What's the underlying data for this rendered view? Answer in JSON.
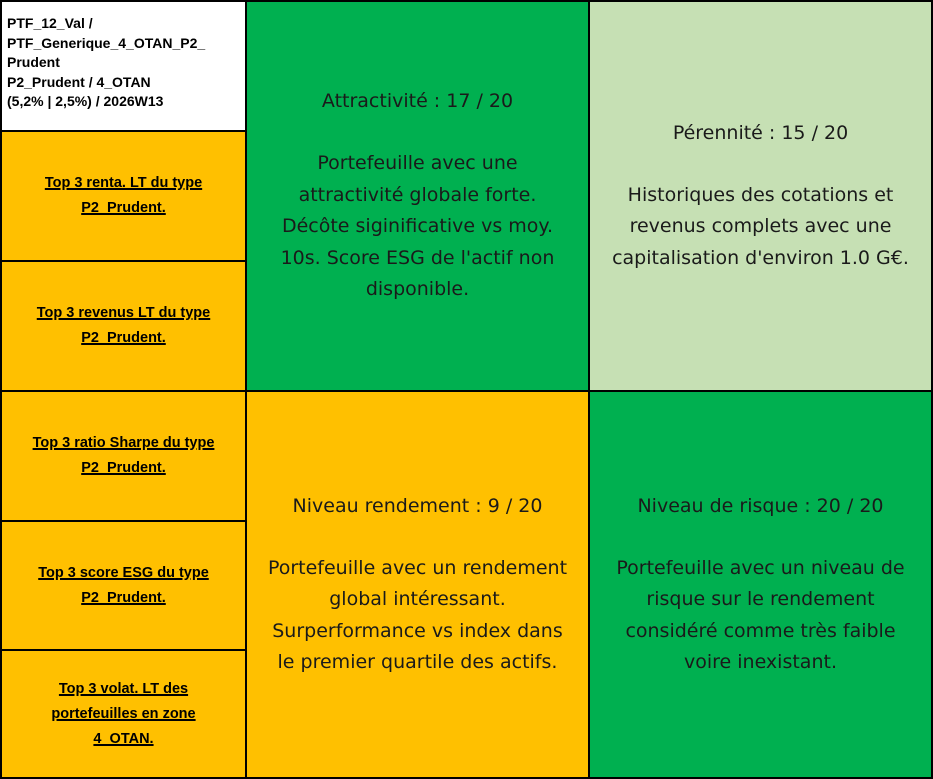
{
  "header": {
    "lines": [
      "PTF_12_Val /",
      "PTF_Generique_4_OTAN_P2_",
      "Prudent",
      "P2_Prudent / 4_OTAN",
      "(5,2% | 2,5%) / 2026W13"
    ]
  },
  "links": [
    {
      "line1": "Top 3 renta. LT du type",
      "line2": "P2_Prudent."
    },
    {
      "line1": "Top 3 revenus LT du type",
      "line2": "P2_Prudent."
    },
    {
      "line1": "Top 3 ratio Sharpe du type",
      "line2": "P2_Prudent."
    },
    {
      "line1": "Top 3 score ESG du type",
      "line2": "P2_Prudent."
    },
    {
      "line1": "Top 3 volat. LT des",
      "line2": "portefeuilles en zone",
      "line3": "4_OTAN."
    }
  ],
  "panels": {
    "attractivite": {
      "title": "Attractivité : 17 / 20",
      "desc": [
        "Portefeuille avec une",
        "attractivité globale forte.",
        "Décôte siginificative vs moy.",
        "10s. Score ESG de l'actif non",
        "disponible."
      ],
      "color": "#00b050"
    },
    "perennite": {
      "title": "Pérennité : 15 / 20",
      "desc": [
        "Historiques des cotations et",
        "revenus complets avec une",
        "capitalisation d'environ 1.0 G€."
      ],
      "color": "#c6e0b4"
    },
    "rendement": {
      "title": "Niveau rendement : 9 / 20",
      "desc": [
        "Portefeuille avec un rendement",
        "global intéressant.",
        "Surperformance vs index dans",
        "le premier quartile des actifs."
      ],
      "color": "#ffc000"
    },
    "risque": {
      "title": "Niveau de risque : 20 / 20",
      "desc": [
        "Portefeuille avec un niveau de",
        "risque sur le rendement",
        "considéré comme très faible",
        "voire inexistant."
      ],
      "color": "#00b050"
    }
  }
}
